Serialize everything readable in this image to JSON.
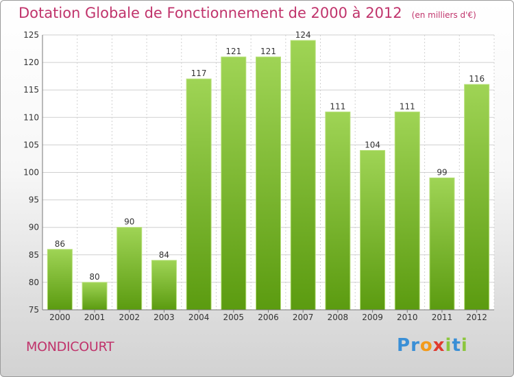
{
  "chart_data": {
    "type": "bar",
    "title": "Dotation Globale de Fonctionnement de 2000 à 2012",
    "unit_label": "(en milliers d'€)",
    "categories": [
      "2000",
      "2001",
      "2002",
      "2003",
      "2004",
      "2005",
      "2006",
      "2007",
      "2008",
      "2009",
      "2010",
      "2011",
      "2012"
    ],
    "values": [
      86,
      80,
      90,
      84,
      117,
      121,
      121,
      124,
      111,
      104,
      111,
      99,
      116
    ],
    "ylim": [
      75,
      125
    ],
    "yticks": [
      75,
      80,
      85,
      90,
      95,
      100,
      105,
      110,
      115,
      120,
      125
    ],
    "xlabel": "",
    "ylabel": "",
    "grid": true
  },
  "commune": "MONDICOURT",
  "brand": {
    "letters": [
      "P",
      "r",
      "o",
      "x",
      "i",
      "t",
      "i"
    ],
    "colors": [
      "#3a8fd6",
      "#3a8fd6",
      "#f39a1a",
      "#e03a2f",
      "#8cc63e",
      "#3a8fd6",
      "#8cc63e"
    ]
  },
  "colors": {
    "accent": "#c0336b",
    "bar_top": "#9fd455",
    "bar_bottom": "#5b9b10",
    "grid": "#cfcfcf",
    "axis": "#777777"
  }
}
